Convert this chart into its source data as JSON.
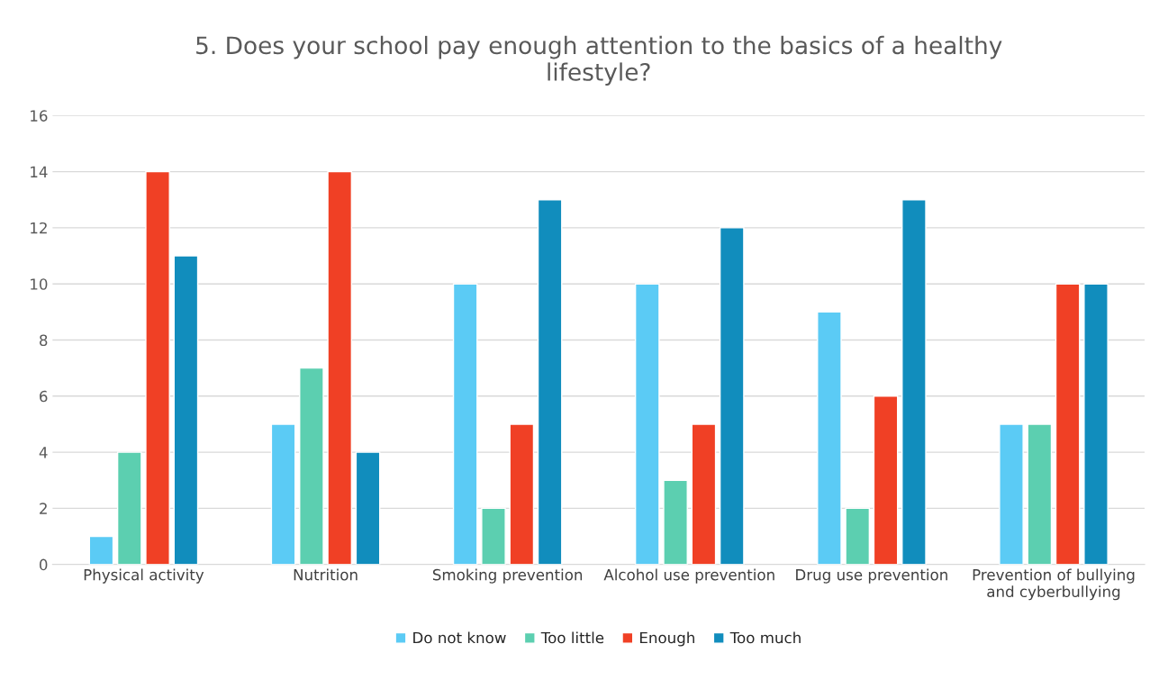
{
  "chart_data": {
    "type": "bar",
    "title": "5. Does your school pay enough attention to the basics of a healthy\nlifestyle?",
    "categories": [
      "Physical activity",
      "Nutrition",
      "Smoking prevention",
      "Alcohol use prevention",
      "Drug use prevention",
      "Prevention of bullying\nand cyberbullying"
    ],
    "series": [
      {
        "name": "Do not know",
        "color": "#5bcbf5",
        "values": [
          1,
          5,
          10,
          10,
          9,
          5
        ]
      },
      {
        "name": "Too little",
        "color": "#5ccfb0",
        "values": [
          4,
          7,
          2,
          3,
          2,
          5
        ]
      },
      {
        "name": "Enough",
        "color": "#f04025",
        "values": [
          14,
          14,
          5,
          5,
          6,
          10
        ]
      },
      {
        "name": "Too much",
        "color": "#118dbd",
        "values": [
          11,
          4,
          13,
          12,
          13,
          10
        ]
      }
    ],
    "ylim": [
      0,
      16
    ],
    "yticks": [
      0,
      2,
      4,
      6,
      8,
      10,
      12,
      14,
      16
    ],
    "grid": "y",
    "legend": "bottom"
  }
}
